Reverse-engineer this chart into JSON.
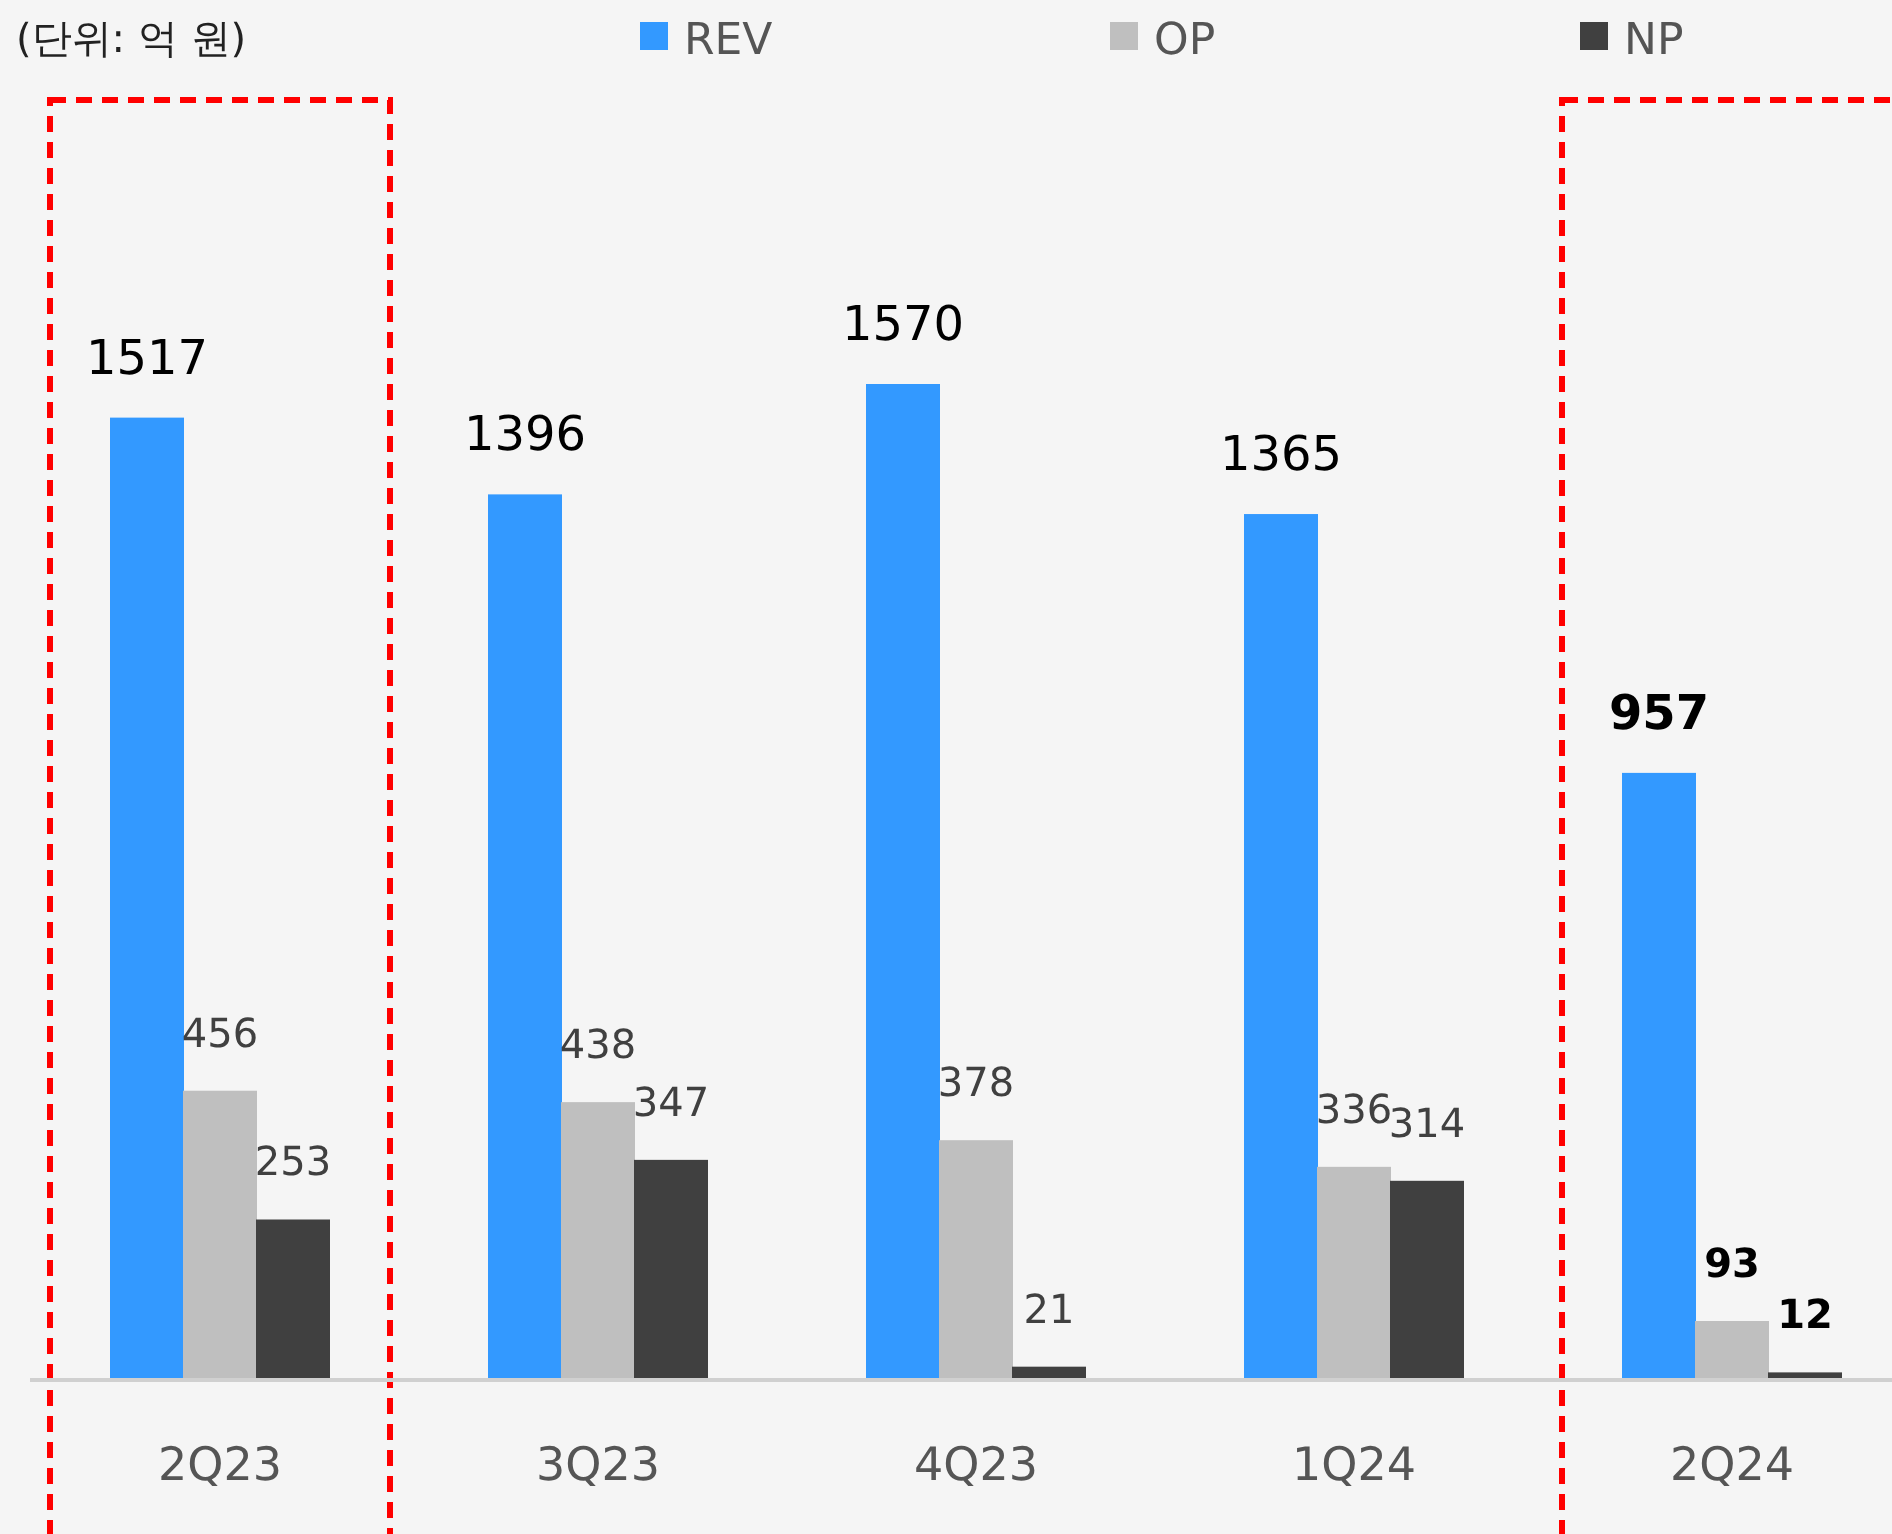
{
  "chart_data": {
    "type": "bar",
    "categories": [
      "2Q23",
      "3Q23",
      "4Q23",
      "1Q24",
      "2Q24"
    ],
    "series": [
      {
        "name": "REV",
        "color": "#3399ff",
        "values": [
          1517,
          1396,
          1570,
          1365,
          957
        ]
      },
      {
        "name": "OP",
        "color": "#bfbfbf",
        "values": [
          456,
          438,
          378,
          336,
          93
        ]
      },
      {
        "name": "NP",
        "color": "#404040",
        "values": [
          253,
          347,
          21,
          314,
          12
        ]
      }
    ],
    "data_labels": true,
    "legend": "top",
    "annotations": [
      "(단위: 억 원)"
    ]
  }
}
